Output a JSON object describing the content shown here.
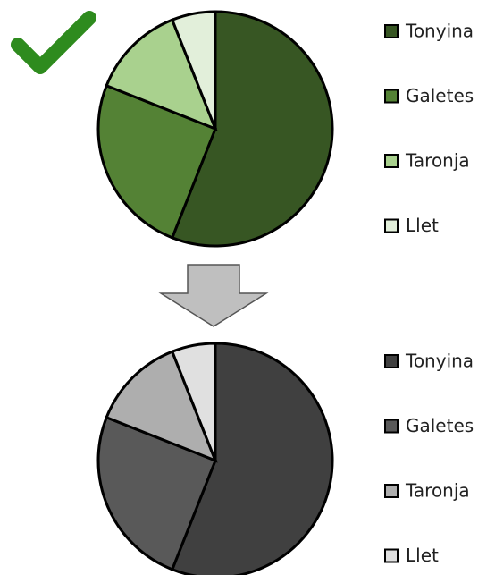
{
  "chart_data": [
    {
      "type": "pie",
      "categories": [
        "Tonyina",
        "Galetes",
        "Taronja",
        "Llet"
      ],
      "values": [
        56,
        25,
        13,
        6
      ],
      "colors": [
        "#375623",
        "#548235",
        "#a9d18e",
        "#e2efda"
      ]
    },
    {
      "type": "pie",
      "categories": [
        "Tonyina",
        "Galetes",
        "Taronja",
        "Llet"
      ],
      "values": [
        56,
        25,
        13,
        6
      ],
      "colors": [
        "#404040",
        "#595959",
        "#aeaeae",
        "#e0e0e0"
      ]
    }
  ]
}
